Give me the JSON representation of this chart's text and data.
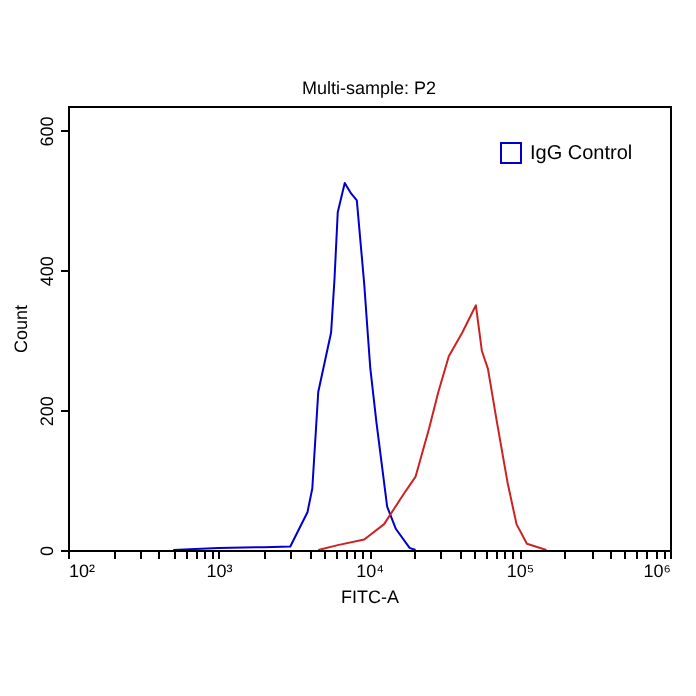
{
  "chart_data": {
    "type": "line",
    "title": "Multi-sample: P2",
    "xlabel": "FITC-A",
    "ylabel": "Count",
    "log": "x",
    "legend": "top right",
    "marker": "none",
    "line_style": "solid",
    "xlim": [
      100,
      1000000
    ],
    "ylim": [
      0,
      635
    ],
    "xticks": [
      {
        "value": 100,
        "label": "10²"
      },
      {
        "value": 200,
        "label": null
      },
      {
        "value": 300,
        "label": null
      },
      {
        "value": 400,
        "label": null
      },
      {
        "value": 500,
        "label": null
      },
      {
        "value": 600,
        "label": null
      },
      {
        "value": 700,
        "label": null
      },
      {
        "value": 800,
        "label": null
      },
      {
        "value": 900,
        "label": null
      },
      {
        "value": 1000,
        "label": "10³"
      },
      {
        "value": 2000,
        "label": null
      },
      {
        "value": 3000,
        "label": null
      },
      {
        "value": 4000,
        "label": null
      },
      {
        "value": 5000,
        "label": null
      },
      {
        "value": 6000,
        "label": null
      },
      {
        "value": 7000,
        "label": null
      },
      {
        "value": 8000,
        "label": null
      },
      {
        "value": 9000,
        "label": null
      },
      {
        "value": 10000,
        "label": "10⁴"
      },
      {
        "value": 20000,
        "label": null
      },
      {
        "value": 30000,
        "label": null
      },
      {
        "value": 40000,
        "label": null
      },
      {
        "value": 50000,
        "label": null
      },
      {
        "value": 60000,
        "label": null
      },
      {
        "value": 70000,
        "label": null
      },
      {
        "value": 80000,
        "label": null
      },
      {
        "value": 90000,
        "label": null
      },
      {
        "value": 100000,
        "label": "10⁵"
      },
      {
        "value": 200000,
        "label": null
      },
      {
        "value": 300000,
        "label": null
      },
      {
        "value": 400000,
        "label": null
      },
      {
        "value": 500000,
        "label": null
      },
      {
        "value": 600000,
        "label": null
      },
      {
        "value": 700000,
        "label": null
      },
      {
        "value": 800000,
        "label": null
      },
      {
        "value": 900000,
        "label": null
      },
      {
        "value": 1000000,
        "label": "10⁶"
      }
    ],
    "yticks": [
      0,
      200,
      400,
      600
    ],
    "series": [
      {
        "name": "IgG Control",
        "color": "#0000cc",
        "x": [
          500,
          1000,
          2000,
          3000,
          3900,
          4200,
          4600,
          5600,
          5900,
          6200,
          6900,
          7600,
          8300,
          9300,
          9800,
          10200,
          11200,
          13200,
          15100,
          18600,
          20400
        ],
        "values": [
          0,
          3,
          4,
          5,
          54,
          88,
          226,
          311,
          388,
          483,
          525,
          510,
          500,
          380,
          311,
          260,
          183,
          62,
          30,
          3,
          0
        ]
      },
      {
        "color": "#cc2222",
        "x": [
          4600,
          6200,
          9300,
          12600,
          17000,
          20400,
          25100,
          28800,
          33900,
          41700,
          51300,
          56200,
          61700,
          70800,
          83200,
          95500,
          112000,
          151000
        ],
        "values": [
          0,
          7,
          15,
          37,
          80,
          105,
          174,
          225,
          277,
          311,
          350,
          285,
          259,
          183,
          97,
          37,
          9,
          0
        ]
      }
    ]
  }
}
